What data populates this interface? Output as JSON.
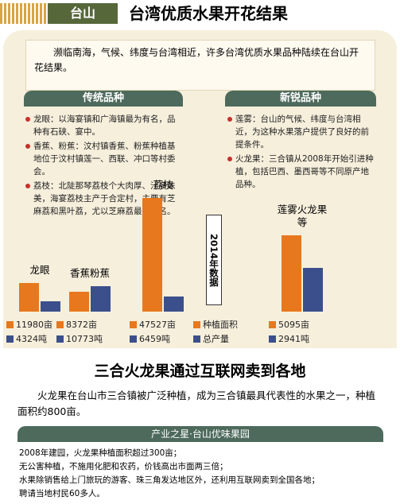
{
  "header": {
    "tag": "台山",
    "title": "台湾优质水果开花结果"
  },
  "intro": "濒临南海，气候、纬度与台湾相近，许多台湾优质水果品种陆续在台山开花结果。",
  "traditional": {
    "title": "传统品种",
    "items": [
      "龙眼：以海宴镇和广海镇最为有名，品种有石硖、宴中。",
      "香蕉、粉蕉：汶村镇香蕉、粉蕉种植基地位于汶村镇莲一、西联、冲口等村委会。",
      "荔枝：北陡那琴荔枝个大肉厚、汁多味美，海宴荔枝主产于合定村，主要有芝麻荔和黑叶荔，尤以芝麻荔最为出名。"
    ]
  },
  "new": {
    "title": "新锐品种",
    "items": [
      "莲雾：台山的气候、纬度与台湾相近，为这种水果落户提供了良好的前提条件。",
      "火龙果：三合镇从2008年开始引进种植，包括巴西、墨西哥等不同原产地品种。"
    ]
  },
  "chart_data": [
    {
      "type": "bar",
      "categories": [
        "龙眼",
        "香蕉粉蕉",
        "荔枝"
      ],
      "series": [
        {
          "name": "种植面积",
          "color": "#e8781e",
          "values": [
            11980,
            8372,
            47527
          ],
          "value_labels": [
            "11980亩",
            "8372亩",
            "47527亩"
          ]
        },
        {
          "name": "总产量",
          "color": "#3b4f8c",
          "values": [
            4324,
            10773,
            6459
          ],
          "value_labels": [
            "4324吨",
            "10773吨",
            "6459吨"
          ]
        }
      ],
      "ylim": [
        0,
        50000
      ],
      "annotation": "2014年数据"
    },
    {
      "type": "bar",
      "categories": [
        "莲雾火龙果等"
      ],
      "series": [
        {
          "color": "#e8781e",
          "values": [
            5095
          ],
          "value_labels": [
            "5095亩"
          ]
        },
        {
          "color": "#3b4f8c",
          "values": [
            2941
          ],
          "value_labels": [
            "2941吨"
          ]
        }
      ],
      "ylim": [
        0,
        8000
      ]
    }
  ],
  "article": {
    "headline": "三合火龙果通过互联网卖到各地",
    "body": "火龙果在台山市三合镇被广泛种植，成为三合镇最具代表性的水果之一，种植面积约800亩。"
  },
  "box": {
    "title": "产业之星·台山优味果园",
    "lines": [
      "2008年建园，火龙果种植面积超过300亩；",
      "无公害种植，不施用化肥和农药，价钱高出市面两三倍；",
      "水果除销售给上门旅玩的游客、珠三角发达地区外，还利用互联网卖到全国各地；",
      "聘请当地村民60多人。"
    ]
  }
}
